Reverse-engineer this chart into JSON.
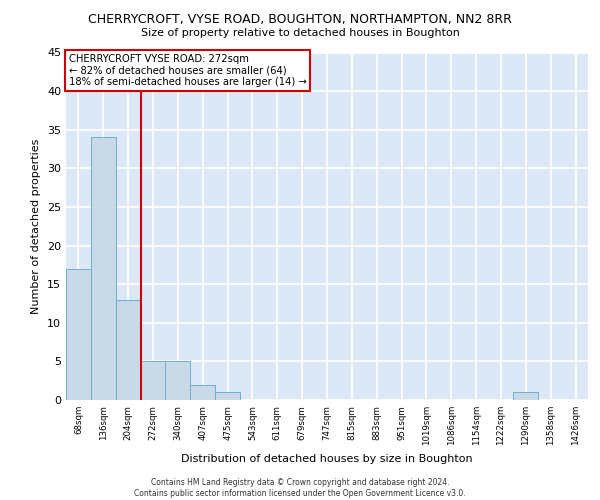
{
  "title": "CHERRYCROFT, VYSE ROAD, BOUGHTON, NORTHAMPTON, NN2 8RR",
  "subtitle": "Size of property relative to detached houses in Boughton",
  "xlabel": "Distribution of detached houses by size in Boughton",
  "ylabel": "Number of detached properties",
  "bin_labels": [
    "68sqm",
    "136sqm",
    "204sqm",
    "272sqm",
    "340sqm",
    "407sqm",
    "475sqm",
    "543sqm",
    "611sqm",
    "679sqm",
    "747sqm",
    "815sqm",
    "883sqm",
    "951sqm",
    "1019sqm",
    "1086sqm",
    "1154sqm",
    "1222sqm",
    "1290sqm",
    "1358sqm",
    "1426sqm"
  ],
  "bar_values": [
    17,
    34,
    13,
    5,
    5,
    2,
    1,
    0,
    0,
    0,
    0,
    0,
    0,
    0,
    0,
    0,
    0,
    0,
    1,
    0,
    0
  ],
  "bar_color": "#c9d9e8",
  "bar_edge_color": "#6baed6",
  "red_line_index": 3,
  "annotation_line1": "CHERRYCROFT VYSE ROAD: 272sqm",
  "annotation_line2": "← 82% of detached houses are smaller (64)",
  "annotation_line3": "18% of semi-detached houses are larger (14) →",
  "annotation_box_color": "#ffffff",
  "annotation_box_edge_color": "#cc0000",
  "ylim": [
    0,
    45
  ],
  "yticks": [
    0,
    5,
    10,
    15,
    20,
    25,
    30,
    35,
    40,
    45
  ],
  "background_color": "#dce8f5",
  "grid_color": "#ffffff",
  "footer_line1": "Contains HM Land Registry data © Crown copyright and database right 2024.",
  "footer_line2": "Contains public sector information licensed under the Open Government Licence v3.0."
}
